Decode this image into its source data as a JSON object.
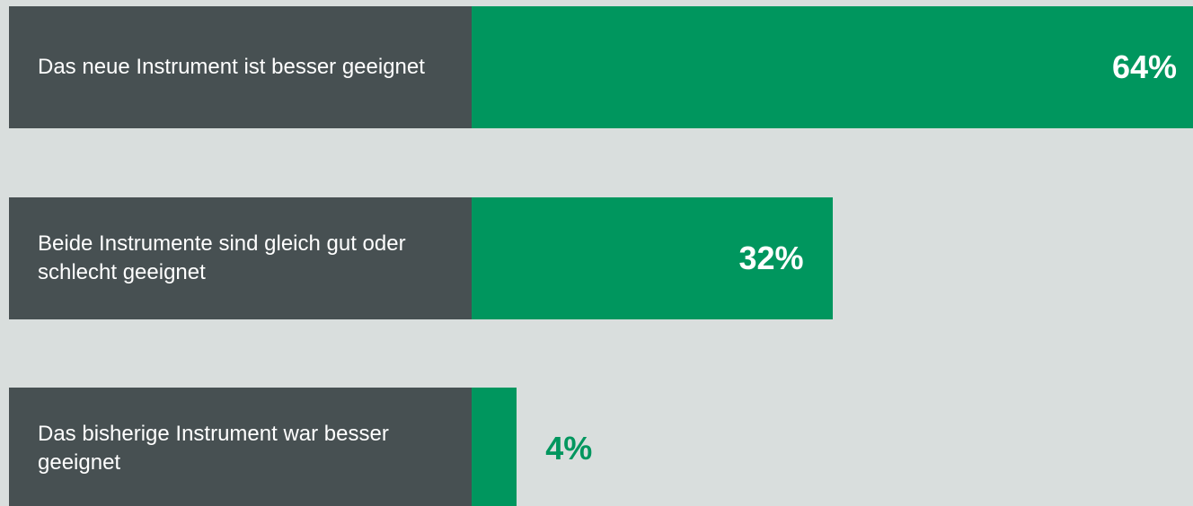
{
  "chart_data": {
    "type": "bar",
    "orientation": "horizontal",
    "categories": [
      "Das neue Instrument ist besser geeignet",
      "Beide Instrumente sind gleich gut oder schlecht geeignet",
      "Das bisherige Instrument war besser geeignet"
    ],
    "values": [
      64,
      32,
      4
    ],
    "value_labels": [
      "64%",
      "32%",
      "4%"
    ],
    "color": "#00965e",
    "label_color": "#475052",
    "background": "#d9dedd"
  }
}
